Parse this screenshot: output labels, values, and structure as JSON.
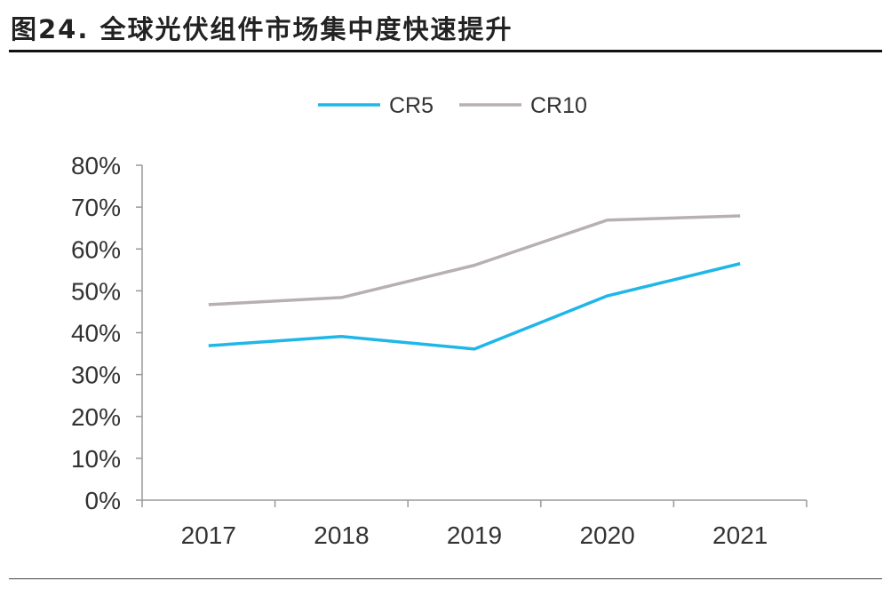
{
  "title": "图24. 全球光伏组件市场集中度快速提升",
  "chart_data": {
    "type": "line",
    "title": "",
    "xlabel": "",
    "ylabel": "",
    "categories": [
      "2017",
      "2018",
      "2019",
      "2020",
      "2021"
    ],
    "ylim": [
      0,
      80
    ],
    "yticks": [
      "0%",
      "10%",
      "20%",
      "30%",
      "40%",
      "50%",
      "60%",
      "70%",
      "80%"
    ],
    "grid": false,
    "legend": "top-center",
    "series": [
      {
        "name": "CR5",
        "color": "#1fb6e8",
        "values": [
          36.9,
          39.1,
          36.1,
          48.8,
          56.5
        ]
      },
      {
        "name": "CR10",
        "color": "#b8b0b0",
        "values": [
          46.7,
          48.4,
          56.1,
          66.9,
          67.9
        ]
      }
    ]
  }
}
